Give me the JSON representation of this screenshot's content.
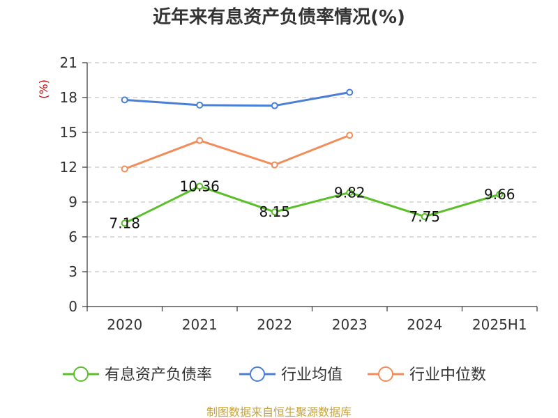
{
  "chart_data": {
    "type": "line",
    "title": "近年来有息资产负债率情况(%)",
    "ylabel": "(%)",
    "xlabel": "",
    "categories": [
      "2020",
      "2021",
      "2022",
      "2023",
      "2024",
      "2025H1"
    ],
    "ylim": [
      0,
      21
    ],
    "yticks": [
      0,
      3,
      6,
      9,
      12,
      15,
      18,
      21
    ],
    "grid": true,
    "legend_position": "bottom",
    "series": [
      {
        "name": "有息资产负债率",
        "color": "#5bbf2a",
        "values": [
          7.18,
          10.36,
          8.15,
          9.82,
          7.75,
          9.66
        ],
        "labels": [
          "7.18",
          "10.36",
          "8.15",
          "9.82",
          "7.75",
          "9.66"
        ]
      },
      {
        "name": "行业均值",
        "color": "#4a7fd6",
        "values": [
          17.8,
          17.35,
          17.3,
          18.45,
          null,
          null
        ]
      },
      {
        "name": "行业中位数",
        "color": "#f28d5a",
        "values": [
          11.85,
          14.3,
          12.2,
          14.75,
          null,
          null
        ]
      }
    ]
  },
  "source": "制图数据来自恒生聚源数据库"
}
